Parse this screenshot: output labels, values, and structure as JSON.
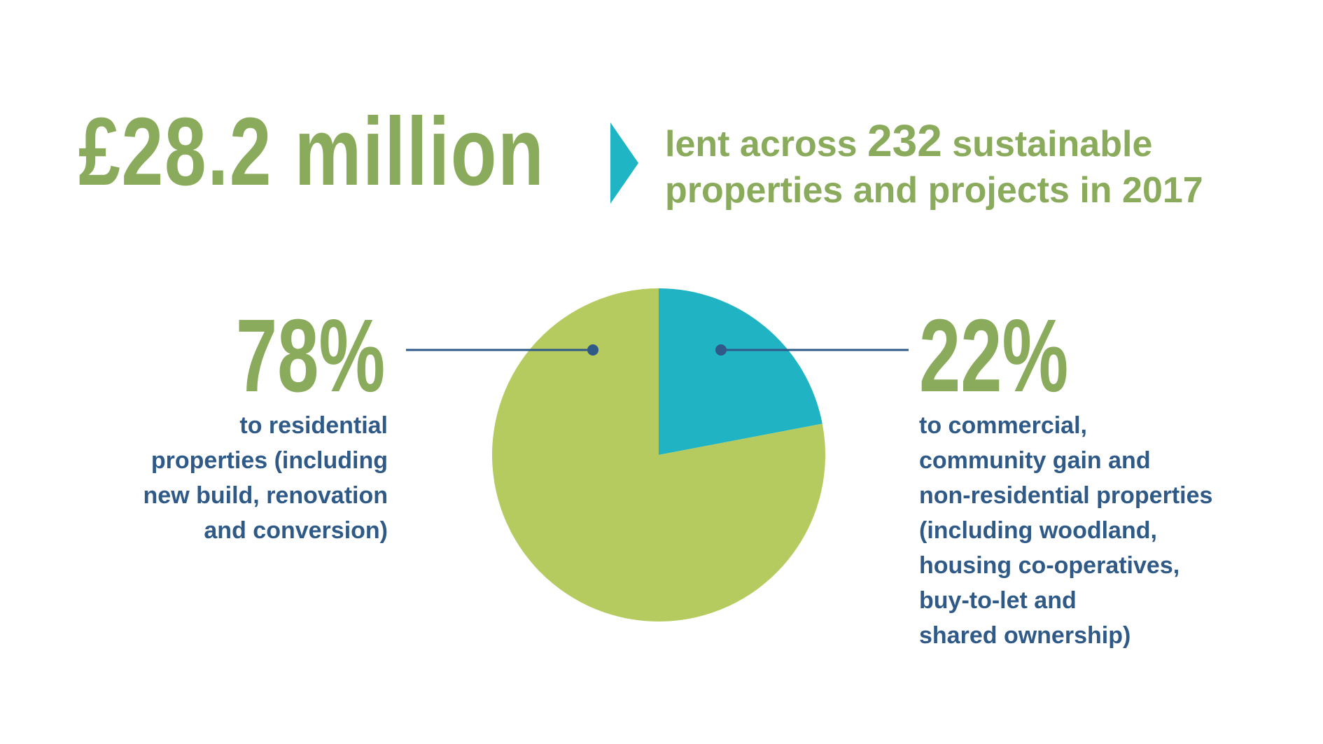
{
  "headline": {
    "amount": "£28.2 million",
    "desc_part1": "lent across ",
    "desc_number": "232",
    "desc_part2": " sustainable",
    "desc_line2": "properties and projects in 2017"
  },
  "colors": {
    "green_text": "#8aab5b",
    "arrow": "#1fb5c4",
    "residential": "#b5cb5f",
    "commercial": "#1fb3c4",
    "blue_text": "#2f5a87",
    "connector": "#2f5a87"
  },
  "chart_data": {
    "type": "pie",
    "title": "£28.2 million lent across 232 sustainable properties and projects in 2017",
    "slices": [
      {
        "name": "commercial",
        "value": 22,
        "label": "22%",
        "color": "#1fb3c4",
        "description": [
          "to commercial,",
          "community gain and",
          "non-residential properties",
          "(including woodland,",
          "housing co-operatives,",
          "buy-to-let and",
          "shared ownership)"
        ]
      },
      {
        "name": "residential",
        "value": 78,
        "label": "78%",
        "color": "#b5cb5f",
        "description": [
          "to residential",
          "properties (including",
          "new build, renovation",
          "and conversion)"
        ]
      }
    ]
  }
}
